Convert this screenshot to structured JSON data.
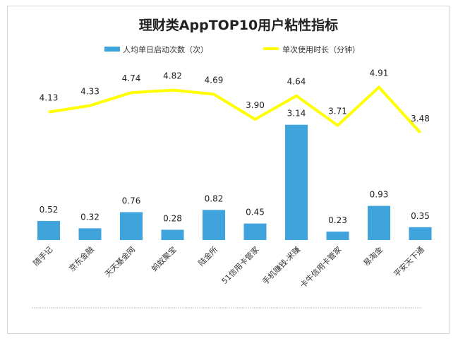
{
  "chart_data": {
    "type": "bar",
    "title": "理财类AppTOP10用户粘性指标",
    "categories": [
      "随手记",
      "京东金融",
      "天天基金网",
      "蚂蚁聚宝",
      "陆金所",
      "51信用卡管家",
      "手机赚钱-米赚",
      "卡牛信用卡管家",
      "易淘金",
      "平安天下通"
    ],
    "series": [
      {
        "name": "人均单日启动次数（次）",
        "type": "bar",
        "values": [
          0.52,
          0.32,
          0.76,
          0.28,
          0.82,
          0.45,
          3.14,
          0.23,
          0.93,
          0.35
        ]
      },
      {
        "name": "单次使用时长（分钟）",
        "type": "line",
        "values": [
          4.13,
          4.33,
          4.74,
          4.82,
          4.69,
          3.9,
          4.64,
          3.71,
          4.91,
          3.48
        ]
      }
    ],
    "colors": {
      "bar": "#3fa3dc",
      "line": "#ffff00"
    },
    "grid": false,
    "legend": "top"
  }
}
